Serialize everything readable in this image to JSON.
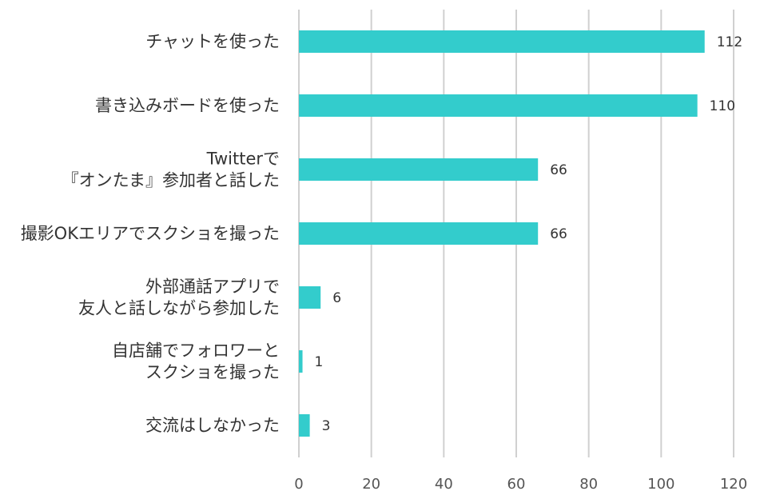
{
  "chart_data": {
    "type": "bar",
    "orientation": "horizontal",
    "categories": [
      [
        "チャットを使った"
      ],
      [
        "書き込みボードを使った"
      ],
      [
        "Twitterで",
        "『オンたま』参加者と話した"
      ],
      [
        "撮影OKエリアでスクショを撮った"
      ],
      [
        "外部通話アプリで",
        "友人と話しながら参加した"
      ],
      [
        "自店舗でフォロワーと",
        "スクショを撮った"
      ],
      [
        "交流はしなかった"
      ]
    ],
    "values": [
      112,
      110,
      66,
      66,
      6,
      1,
      3
    ],
    "data_labels": [
      "112",
      "110",
      "66",
      "66",
      "6",
      "1",
      "3"
    ],
    "x_ticks": [
      "0",
      "20",
      "40",
      "60",
      "80",
      "100",
      "120"
    ],
    "xlim": [
      0,
      120
    ],
    "grid": true,
    "colors": {
      "bar": "#33cccc",
      "grid": "#d0d0d0"
    }
  }
}
